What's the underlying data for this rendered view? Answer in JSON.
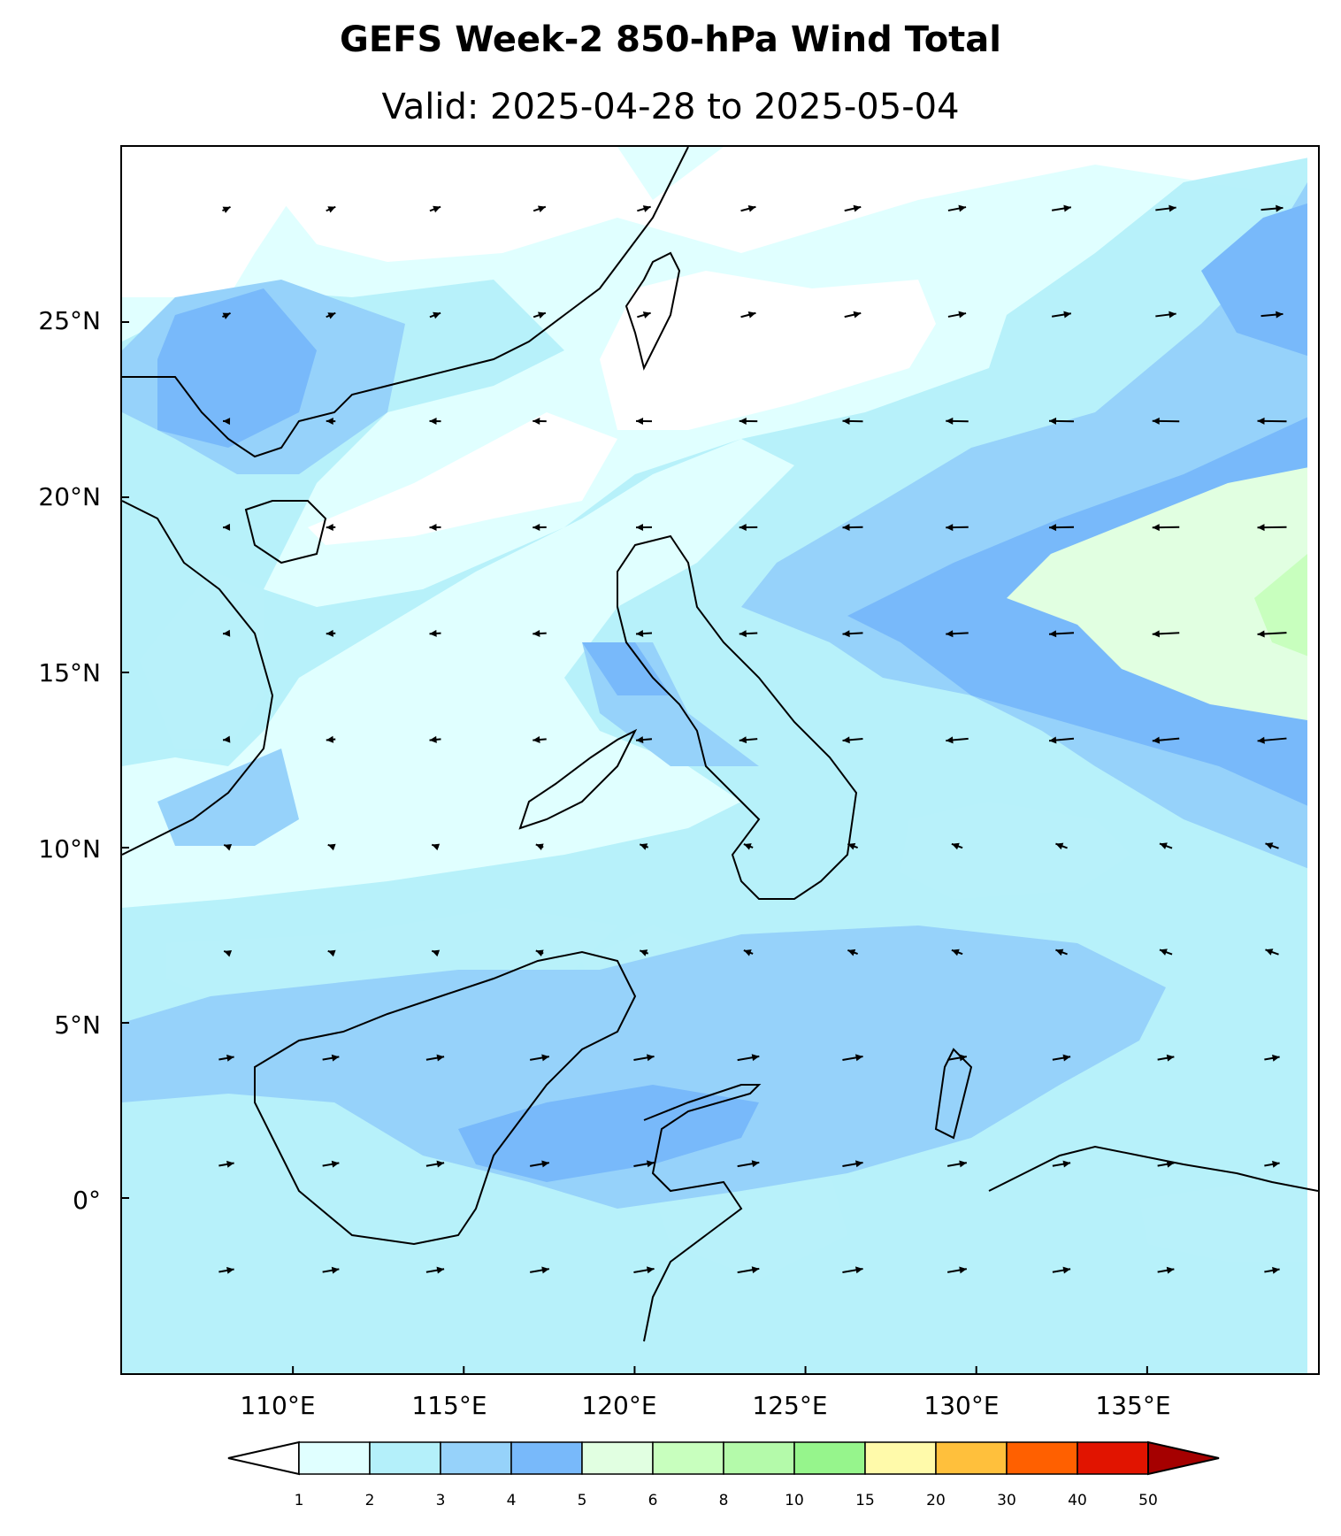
{
  "title": "GEFS Week-2 850-hPa Wind Total",
  "subtitle": "Valid: 2025-04-28 to 2025-05-04",
  "axes": {
    "lat_labels": [
      "25°N",
      "20°N",
      "15°N",
      "10°N",
      "5°N",
      "0°"
    ],
    "lat_values": [
      25,
      20,
      15,
      10,
      5,
      0
    ],
    "lon_labels": [
      "110°E",
      "115°E",
      "120°E",
      "125°E",
      "130°E",
      "135°E"
    ],
    "lon_values": [
      110,
      115,
      120,
      125,
      130,
      135
    ],
    "lon_range": [
      105,
      140
    ],
    "lat_range": [
      -5,
      30
    ]
  },
  "colorbar": {
    "levels": [
      "1",
      "2",
      "3",
      "4",
      "5",
      "6",
      "8",
      "10",
      "15",
      "20",
      "30",
      "40",
      "50"
    ],
    "colors": [
      "#e0ffff",
      "#b4f0fa",
      "#96d2fa",
      "#78b9fa",
      "#e1ffe1",
      "#c8ffbe",
      "#b4faaa",
      "#96f58c",
      "#fffaaa",
      "#ffc03c",
      "#ff6000",
      "#e11400",
      "#a50000"
    ],
    "under_color": "#ffffff",
    "over_color": "#a50000"
  },
  "map": {
    "land_regions": [
      "South China",
      "Taiwan",
      "Hainan",
      "Vietnam",
      "Philippines",
      "Borneo",
      "Sulawesi",
      "Halmahera",
      "New Guinea"
    ],
    "wind_field_note_color": "#000000"
  }
}
